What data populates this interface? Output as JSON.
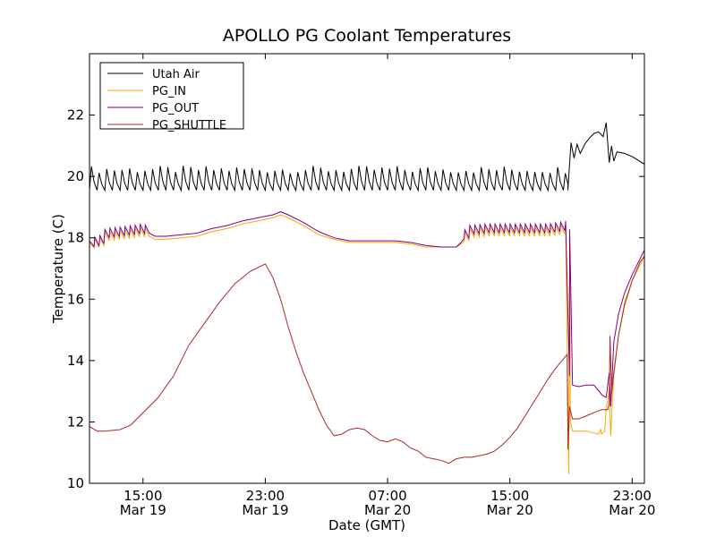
{
  "chart_data": {
    "type": "line",
    "title": "APOLLO PG Coolant Temperatures",
    "xlabel": "Date (GMT)",
    "ylabel": "Temperature (C)",
    "xunit": "hours since Mar 19 11:30 GMT",
    "xlim": [
      0,
      36.3
    ],
    "ylim": [
      10,
      24
    ],
    "yticks": [
      10,
      12,
      14,
      16,
      18,
      20,
      22
    ],
    "xticks": [
      {
        "x": 3.5,
        "time": "15:00",
        "date": "Mar 19"
      },
      {
        "x": 11.5,
        "time": "23:00",
        "date": "Mar 19"
      },
      {
        "x": 19.5,
        "time": "07:00",
        "date": "Mar 20"
      },
      {
        "x": 27.5,
        "time": "15:00",
        "date": "Mar 20"
      },
      {
        "x": 35.5,
        "time": "23:00",
        "date": "Mar 20"
      }
    ],
    "grid": false,
    "legend_position": "top-left",
    "series": [
      {
        "name": "Utah Air",
        "color": "#000000",
        "cycle": {
          "from": 0,
          "to": 31.3,
          "period": 0.5,
          "base": 19.55,
          "amplitude": [
            0.55,
            0.8
          ]
        },
        "points": [
          [
            31.3,
            19.6
          ],
          [
            31.5,
            21.1
          ],
          [
            31.7,
            20.6
          ],
          [
            31.9,
            21.05
          ],
          [
            32.1,
            20.75
          ],
          [
            32.4,
            21.05
          ],
          [
            32.7,
            21.25
          ],
          [
            33.0,
            21.4
          ],
          [
            33.3,
            21.45
          ],
          [
            33.6,
            21.3
          ],
          [
            33.8,
            21.75
          ],
          [
            34.0,
            20.45
          ],
          [
            34.15,
            21.0
          ],
          [
            34.3,
            20.5
          ],
          [
            34.5,
            20.8
          ],
          [
            35.0,
            20.75
          ],
          [
            35.5,
            20.65
          ],
          [
            36.3,
            20.4
          ]
        ]
      },
      {
        "name": "PG_IN",
        "color": "#ffa500",
        "sawtooth": {
          "from": 0.3,
          "to": 3.8,
          "period": 0.33,
          "depth": 0.3
        },
        "sawtooth2": {
          "from": 24.5,
          "to": 31.3,
          "period": 0.33,
          "depth": 0.3
        },
        "points": [
          [
            0,
            17.85
          ],
          [
            0.5,
            17.8
          ],
          [
            1.0,
            18.05
          ],
          [
            2.0,
            18.1
          ],
          [
            3.5,
            18.2
          ],
          [
            4.3,
            17.95
          ],
          [
            5.0,
            17.95
          ],
          [
            6.0,
            18.0
          ],
          [
            7.0,
            18.05
          ],
          [
            8.0,
            18.2
          ],
          [
            9.0,
            18.3
          ],
          [
            10.0,
            18.45
          ],
          [
            11.0,
            18.55
          ],
          [
            12.0,
            18.65
          ],
          [
            12.5,
            18.75
          ],
          [
            13.0,
            18.65
          ],
          [
            14.0,
            18.4
          ],
          [
            15.0,
            18.1
          ],
          [
            16.0,
            17.95
          ],
          [
            17.0,
            17.85
          ],
          [
            18.0,
            17.85
          ],
          [
            19.0,
            17.85
          ],
          [
            20.0,
            17.85
          ],
          [
            21.0,
            17.8
          ],
          [
            22.0,
            17.7
          ],
          [
            23.0,
            17.7
          ],
          [
            24.0,
            17.7
          ],
          [
            24.3,
            17.8
          ],
          [
            24.6,
            18.15
          ],
          [
            26.0,
            18.2
          ],
          [
            28.0,
            18.2
          ],
          [
            30.0,
            18.2
          ],
          [
            31.2,
            18.3
          ],
          [
            31.25,
            18.0
          ],
          [
            31.35,
            10.3
          ],
          [
            31.45,
            12.0
          ],
          [
            31.6,
            11.7
          ],
          [
            32.5,
            11.7
          ],
          [
            33.3,
            11.6
          ],
          [
            33.45,
            11.75
          ],
          [
            33.5,
            11.6
          ],
          [
            33.7,
            11.7
          ],
          [
            33.8,
            12.45
          ],
          [
            34.0,
            13.0
          ],
          [
            34.1,
            11.55
          ],
          [
            34.3,
            13.5
          ],
          [
            34.6,
            14.8
          ],
          [
            35.0,
            15.9
          ],
          [
            35.5,
            16.6
          ],
          [
            36.0,
            17.1
          ],
          [
            36.3,
            17.4
          ]
        ]
      },
      {
        "name": "PG_OUT",
        "color": "#800080",
        "sawtooth": {
          "from": 0.3,
          "to": 3.8,
          "period": 0.33,
          "depth": 0.3
        },
        "sawtooth2": {
          "from": 24.5,
          "to": 31.3,
          "period": 0.33,
          "depth": 0.3
        },
        "points": [
          [
            0,
            17.9
          ],
          [
            0.5,
            17.85
          ],
          [
            1.0,
            18.15
          ],
          [
            2.0,
            18.2
          ],
          [
            3.5,
            18.3
          ],
          [
            4.3,
            18.05
          ],
          [
            5.0,
            18.05
          ],
          [
            6.0,
            18.1
          ],
          [
            7.0,
            18.15
          ],
          [
            8.0,
            18.3
          ],
          [
            9.0,
            18.4
          ],
          [
            10.0,
            18.55
          ],
          [
            11.0,
            18.65
          ],
          [
            12.0,
            18.75
          ],
          [
            12.5,
            18.85
          ],
          [
            13.0,
            18.75
          ],
          [
            14.0,
            18.5
          ],
          [
            15.0,
            18.2
          ],
          [
            16.0,
            18.0
          ],
          [
            17.0,
            17.9
          ],
          [
            18.0,
            17.9
          ],
          [
            19.0,
            17.9
          ],
          [
            20.0,
            17.9
          ],
          [
            21.0,
            17.85
          ],
          [
            22.0,
            17.75
          ],
          [
            23.0,
            17.7
          ],
          [
            24.0,
            17.7
          ],
          [
            24.3,
            17.85
          ],
          [
            24.6,
            18.25
          ],
          [
            26.0,
            18.3
          ],
          [
            28.0,
            18.3
          ],
          [
            30.0,
            18.3
          ],
          [
            31.2,
            18.4
          ],
          [
            31.25,
            18.5
          ],
          [
            31.3,
            12.0
          ],
          [
            31.4,
            13.5
          ],
          [
            31.6,
            13.2
          ],
          [
            32.0,
            13.15
          ],
          [
            32.5,
            13.2
          ],
          [
            33.0,
            13.2
          ],
          [
            33.5,
            12.9
          ],
          [
            33.6,
            12.85
          ],
          [
            33.8,
            12.8
          ],
          [
            34.0,
            13.6
          ],
          [
            34.1,
            12.5
          ],
          [
            34.3,
            14.6
          ],
          [
            34.6,
            15.5
          ],
          [
            35.0,
            16.2
          ],
          [
            35.5,
            16.8
          ],
          [
            36.0,
            17.3
          ],
          [
            36.3,
            17.6
          ]
        ]
      },
      {
        "name": "PG_SHUTTLE",
        "color": "#a52a2a",
        "points": [
          [
            0,
            11.85
          ],
          [
            0.5,
            11.7
          ],
          [
            1.0,
            11.7
          ],
          [
            2.0,
            11.75
          ],
          [
            2.7,
            11.9
          ],
          [
            3.5,
            12.3
          ],
          [
            4.5,
            12.8
          ],
          [
            5.5,
            13.5
          ],
          [
            6.5,
            14.5
          ],
          [
            7.5,
            15.2
          ],
          [
            8.5,
            15.9
          ],
          [
            9.5,
            16.5
          ],
          [
            10.5,
            16.9
          ],
          [
            11.5,
            17.15
          ],
          [
            12.0,
            16.7
          ],
          [
            12.5,
            16.0
          ],
          [
            13.0,
            15.1
          ],
          [
            13.5,
            14.3
          ],
          [
            14.0,
            13.6
          ],
          [
            14.5,
            13.0
          ],
          [
            15.0,
            12.4
          ],
          [
            15.5,
            11.9
          ],
          [
            16.0,
            11.55
          ],
          [
            16.5,
            11.6
          ],
          [
            17.0,
            11.75
          ],
          [
            17.5,
            11.8
          ],
          [
            18.0,
            11.75
          ],
          [
            18.5,
            11.55
          ],
          [
            19.0,
            11.4
          ],
          [
            19.5,
            11.35
          ],
          [
            20.0,
            11.45
          ],
          [
            20.5,
            11.35
          ],
          [
            21.0,
            11.15
          ],
          [
            21.5,
            11.05
          ],
          [
            22.0,
            10.85
          ],
          [
            22.5,
            10.8
          ],
          [
            23.0,
            10.75
          ],
          [
            23.5,
            10.65
          ],
          [
            24.0,
            10.8
          ],
          [
            24.5,
            10.85
          ],
          [
            25.0,
            10.85
          ],
          [
            25.5,
            10.9
          ],
          [
            26.0,
            10.95
          ],
          [
            26.5,
            11.05
          ],
          [
            27.0,
            11.25
          ],
          [
            27.5,
            11.5
          ],
          [
            28.0,
            11.8
          ],
          [
            28.5,
            12.2
          ],
          [
            29.0,
            12.6
          ],
          [
            29.5,
            13.0
          ],
          [
            30.0,
            13.4
          ],
          [
            30.5,
            13.75
          ],
          [
            31.0,
            14.05
          ],
          [
            31.25,
            14.2
          ],
          [
            31.3,
            11.1
          ],
          [
            31.4,
            12.5
          ],
          [
            31.6,
            12.1
          ],
          [
            32.0,
            12.1
          ],
          [
            32.5,
            12.2
          ],
          [
            33.0,
            12.3
          ],
          [
            33.5,
            12.4
          ],
          [
            33.9,
            12.4
          ],
          [
            34.0,
            12.6
          ],
          [
            34.05,
            14.8
          ],
          [
            34.15,
            12.9
          ],
          [
            34.3,
            13.6
          ],
          [
            34.6,
            14.8
          ],
          [
            35.0,
            15.8
          ],
          [
            35.5,
            16.6
          ],
          [
            36.0,
            17.2
          ],
          [
            36.3,
            17.4
          ]
        ]
      }
    ]
  }
}
